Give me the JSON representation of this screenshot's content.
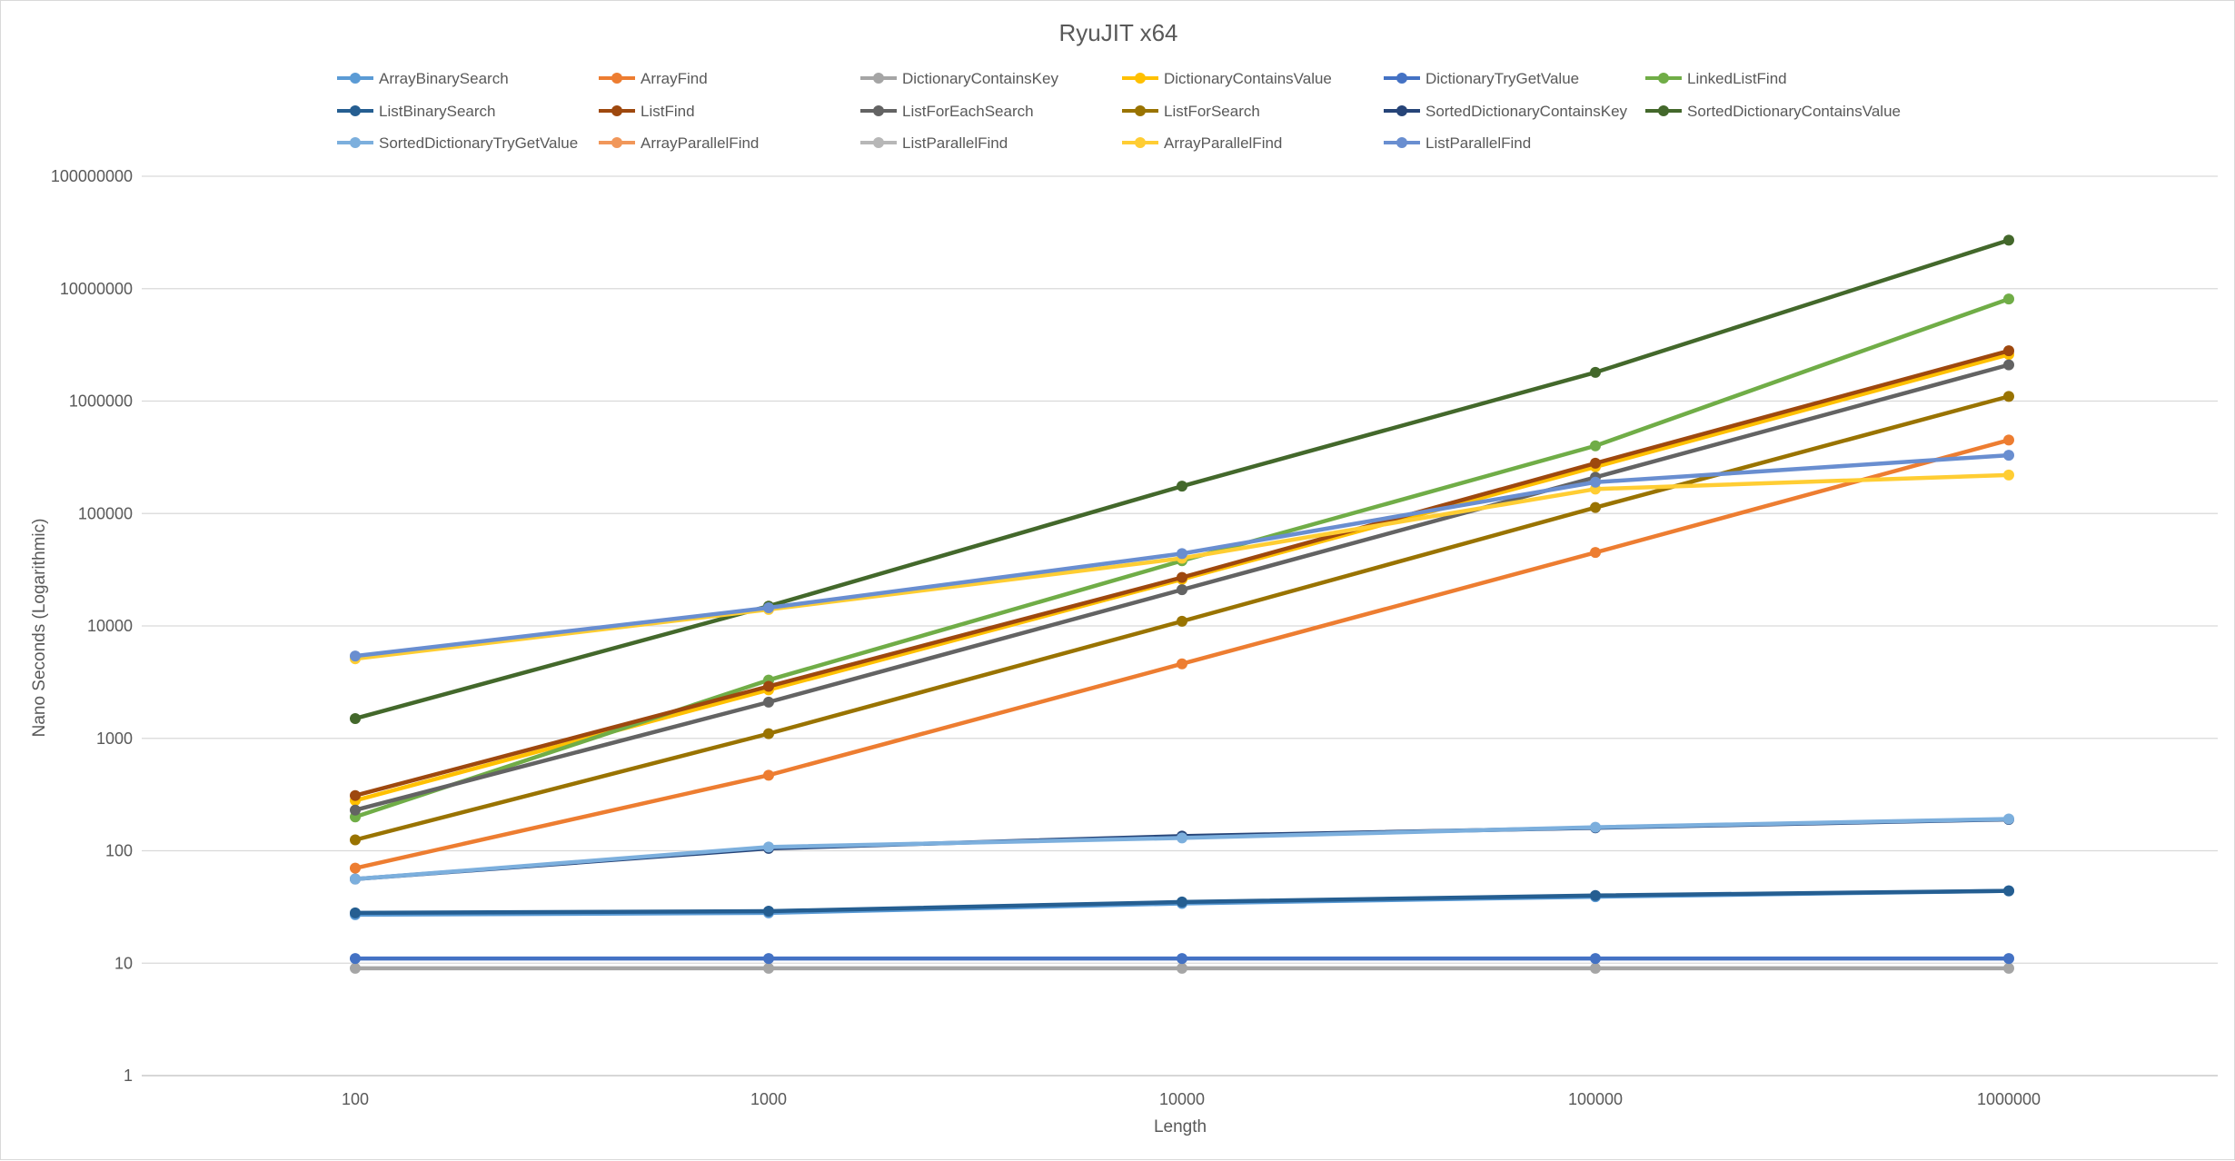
{
  "chart_data": {
    "type": "line",
    "title": "RyuJIT x64",
    "xlabel": "Length",
    "ylabel": "Nano Seconds (Logarithmic)",
    "x_scale": "log",
    "y_scale": "log",
    "x": [
      100,
      1000,
      10000,
      100000,
      1000000
    ],
    "x_tick_labels": [
      "100",
      "1000",
      "10000",
      "100000",
      "1000000"
    ],
    "ylim": [
      1,
      100000000
    ],
    "y_tick_labels": [
      "1",
      "10",
      "100",
      "1000",
      "10000",
      "100000",
      "1000000",
      "10000000",
      "100000000"
    ],
    "grid": true,
    "legend_position": "top",
    "series": [
      {
        "name": "ArrayBinarySearch",
        "color": "#5B9BD5",
        "values": [
          27,
          28,
          34,
          39,
          44
        ]
      },
      {
        "name": "ArrayFind",
        "color": "#ED7D31",
        "values": [
          70,
          470,
          4600,
          45000,
          450000
        ]
      },
      {
        "name": "DictionaryContainsKey",
        "color": "#A5A5A5",
        "values": [
          9,
          9,
          9,
          9,
          9
        ]
      },
      {
        "name": "DictionaryContainsValue",
        "color": "#FFC000",
        "values": [
          280,
          2700,
          26000,
          260000,
          2600000
        ]
      },
      {
        "name": "DictionaryTryGetValue",
        "color": "#4472C4",
        "values": [
          11,
          11,
          11,
          11,
          11
        ]
      },
      {
        "name": "LinkedListFind",
        "color": "#70AD47",
        "values": [
          200,
          3300,
          38000,
          400000,
          8100000
        ]
      },
      {
        "name": "ListBinarySearch",
        "color": "#255E91",
        "values": [
          28,
          29,
          35,
          40,
          44
        ]
      },
      {
        "name": "ListFind",
        "color": "#9E480E",
        "values": [
          310,
          2900,
          27000,
          280000,
          2800000
        ]
      },
      {
        "name": "ListForEachSearch",
        "color": "#636363",
        "values": [
          230,
          2100,
          21000,
          210000,
          2100000
        ]
      },
      {
        "name": "ListForSearch",
        "color": "#997300",
        "values": [
          125,
          1100,
          11000,
          113000,
          1100000
        ]
      },
      {
        "name": "SortedDictionaryContainsKey",
        "color": "#264478",
        "values": [
          56,
          105,
          135,
          160,
          190
        ]
      },
      {
        "name": "SortedDictionaryContainsValue",
        "color": "#43682B",
        "values": [
          1500,
          15000,
          175000,
          1800000,
          27000000
        ]
      },
      {
        "name": "SortedDictionaryTryGetValue",
        "color": "#7CAFDD",
        "values": [
          56,
          108,
          130,
          162,
          192
        ]
      },
      {
        "name": "ArrayParallelFind",
        "color": "#F1975A",
        "values": [
          null,
          null,
          null,
          null,
          null
        ]
      },
      {
        "name": "ListParallelFind",
        "color": "#B7B7B7",
        "values": [
          null,
          null,
          null,
          null,
          null
        ]
      },
      {
        "name": "ArrayParallelFind",
        "color": "#FFCD33",
        "values": [
          5100,
          14000,
          40000,
          165000,
          220000
        ]
      },
      {
        "name": "ListParallelFind",
        "color": "#698ED0",
        "values": [
          5400,
          14500,
          44000,
          190000,
          330000
        ]
      }
    ]
  }
}
